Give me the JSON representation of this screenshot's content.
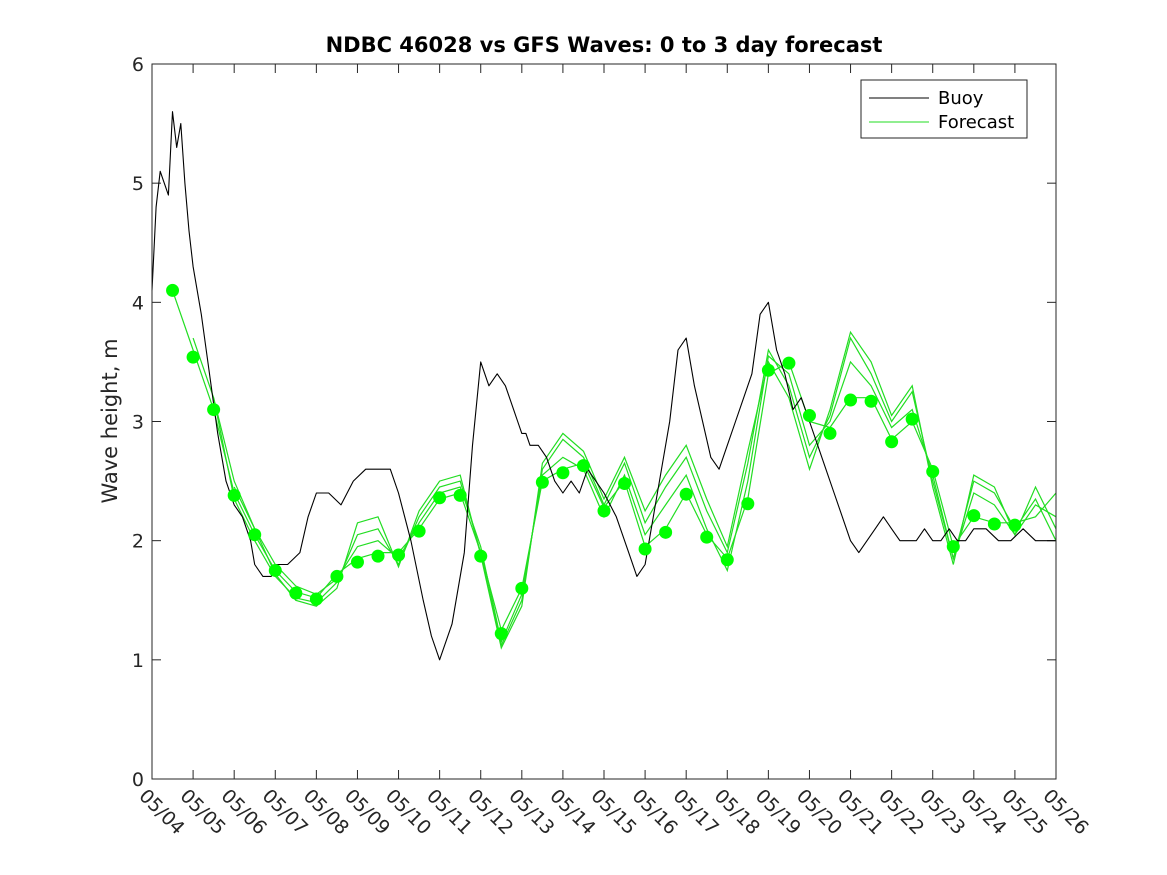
{
  "chart_data": {
    "type": "line",
    "title": "NDBC 46028 vs GFS Waves: 0 to 3 day forecast",
    "ylabel": "Wave height, m",
    "xlabel": "",
    "x_range": [
      0,
      22
    ],
    "ylim": [
      0,
      6
    ],
    "yticks": [
      0,
      1,
      2,
      3,
      4,
      5,
      6
    ],
    "xtick_labels": [
      "05/04",
      "05/05",
      "05/06",
      "05/07",
      "05/08",
      "05/09",
      "05/10",
      "05/11",
      "05/12",
      "05/13",
      "05/14",
      "05/15",
      "05/16",
      "05/17",
      "05/18",
      "05/19",
      "05/20",
      "05/21",
      "05/22",
      "05/23",
      "05/24",
      "05/25",
      "05/26"
    ],
    "legend": {
      "position": "top-right",
      "entries": [
        "Buoy",
        "Forecast"
      ]
    },
    "colors": {
      "buoy": "#000000",
      "forecast": "#00ff00",
      "forecast_line": "#22dd22"
    },
    "buoy": {
      "x": [
        0,
        0.1,
        0.2,
        0.3,
        0.4,
        0.5,
        0.6,
        0.7,
        0.8,
        0.9,
        1.0,
        1.2,
        1.4,
        1.6,
        1.8,
        2.0,
        2.2,
        2.4,
        2.5,
        2.7,
        2.9,
        3.0,
        3.3,
        3.6,
        3.8,
        4.0,
        4.3,
        4.6,
        4.9,
        5.2,
        5.5,
        5.8,
        6.0,
        6.3,
        6.6,
        6.8,
        7.0,
        7.3,
        7.6,
        7.8,
        8.0,
        8.2,
        8.4,
        8.6,
        8.8,
        8.9,
        9.0,
        9.1,
        9.2,
        9.4,
        9.6,
        9.8,
        10.0,
        10.2,
        10.4,
        10.6,
        10.8,
        11.0,
        11.3,
        11.6,
        11.8,
        12.0,
        12.2,
        12.4,
        12.6,
        12.8,
        13.0,
        13.2,
        13.4,
        13.6,
        13.8,
        14.0,
        14.2,
        14.4,
        14.6,
        14.8,
        15.0,
        15.2,
        15.4,
        15.6,
        15.8,
        16.0,
        16.2,
        16.4,
        16.6,
        16.8,
        17.0,
        17.2,
        17.4,
        17.6,
        17.8,
        18.0,
        18.2,
        18.4,
        18.6,
        18.8,
        19.0,
        19.2,
        19.4,
        19.6,
        19.8,
        20.0,
        20.3,
        20.6,
        20.9,
        21.2,
        21.5,
        21.8,
        22.0
      ],
      "y": [
        4.1,
        4.8,
        5.1,
        5.0,
        4.9,
        5.6,
        5.3,
        5.5,
        5.0,
        4.6,
        4.3,
        3.9,
        3.4,
        2.9,
        2.5,
        2.3,
        2.2,
        2.0,
        1.8,
        1.7,
        1.7,
        1.8,
        1.8,
        1.9,
        2.2,
        2.4,
        2.4,
        2.3,
        2.5,
        2.6,
        2.6,
        2.6,
        2.4,
        2.0,
        1.5,
        1.2,
        1.0,
        1.3,
        1.9,
        2.8,
        3.5,
        3.3,
        3.4,
        3.3,
        3.1,
        3.0,
        2.9,
        2.9,
        2.8,
        2.8,
        2.7,
        2.5,
        2.4,
        2.5,
        2.4,
        2.6,
        2.5,
        2.4,
        2.2,
        1.9,
        1.7,
        1.8,
        2.2,
        2.6,
        3.0,
        3.6,
        3.7,
        3.3,
        3.0,
        2.7,
        2.6,
        2.8,
        3.0,
        3.2,
        3.4,
        3.9,
        4.0,
        3.6,
        3.4,
        3.1,
        3.2,
        3.0,
        2.8,
        2.6,
        2.4,
        2.2,
        2.0,
        1.9,
        2.0,
        2.1,
        2.2,
        2.1,
        2.0,
        2.0,
        2.0,
        2.1,
        2.0,
        2.0,
        2.1,
        2.0,
        2.0,
        2.1,
        2.1,
        2.0,
        2.0,
        2.1,
        2.0,
        2.0,
        2.0
      ]
    },
    "forecast_points": {
      "x": [
        0.5,
        1.0,
        1.5,
        2.0,
        2.5,
        3.0,
        3.5,
        4.0,
        4.5,
        5.0,
        5.5,
        6.0,
        6.5,
        7.0,
        7.5,
        8.0,
        8.5,
        9.0,
        9.5,
        10.0,
        10.5,
        11.0,
        11.5,
        12.0,
        12.5,
        13.0,
        13.5,
        14.0,
        14.5,
        15.0,
        15.5,
        16.0,
        16.5,
        17.0,
        17.5,
        18.0,
        18.5,
        19.0,
        19.5,
        20.0,
        20.5,
        21.0
      ],
      "y": [
        4.1,
        3.54,
        3.1,
        2.38,
        2.05,
        1.75,
        1.56,
        1.51,
        1.7,
        1.82,
        1.87,
        1.88,
        2.08,
        2.36,
        2.38,
        1.87,
        1.22,
        1.6,
        2.49,
        2.57,
        2.63,
        2.25,
        2.48,
        1.93,
        2.07,
        2.39,
        2.03,
        1.84,
        2.31,
        3.43,
        3.49,
        3.05,
        2.9,
        3.18,
        3.17,
        2.83,
        3.02,
        2.58,
        1.95,
        2.21,
        2.14,
        2.13
      ]
    },
    "forecast_runs": [
      {
        "x": [
          0.5,
          1.0,
          1.5,
          2.0,
          2.5,
          3.0,
          3.5,
          4.0,
          4.5,
          5.0,
          5.5,
          6.0,
          6.5,
          7.0,
          7.5,
          8.0,
          8.5,
          9.0,
          9.5,
          10.0,
          10.5,
          11.0,
          11.5,
          12.0,
          12.5,
          13.0,
          13.5,
          14.0,
          14.5,
          15.0,
          15.5,
          16.0,
          16.5,
          17.0,
          17.5,
          18.0,
          18.5,
          19.0,
          19.5,
          20.0,
          20.5,
          21.0,
          21.5,
          22.0
        ],
        "y": [
          4.1,
          3.6,
          3.1,
          2.4,
          2.05,
          1.75,
          1.57,
          1.52,
          1.72,
          1.85,
          1.9,
          1.9,
          2.1,
          2.35,
          2.4,
          1.9,
          1.25,
          1.6,
          2.5,
          2.6,
          2.65,
          2.28,
          2.5,
          1.95,
          2.1,
          2.4,
          2.05,
          1.85,
          2.35,
          3.4,
          3.5,
          3.0,
          2.95,
          3.2,
          3.2,
          2.85,
          3.0,
          2.6,
          1.95,
          2.2,
          2.15,
          2.15,
          2.2,
          2.4
        ]
      },
      {
        "x": [
          1.0,
          1.5,
          2.0,
          2.5,
          3.0,
          3.5,
          4.0,
          4.5,
          5.0,
          5.5,
          6.0,
          6.5,
          7.0,
          7.5,
          8.0,
          8.5,
          9.0,
          9.5,
          10.0,
          10.5,
          11.0,
          11.5,
          12.0,
          12.5,
          13.0,
          13.5,
          14.0,
          14.5,
          15.0,
          15.5,
          16.0,
          16.5,
          17.0,
          17.5,
          18.0,
          18.5,
          19.0,
          19.5,
          20.0,
          20.5,
          21.0,
          21.5,
          22.0
        ],
        "y": [
          3.7,
          3.2,
          2.5,
          2.1,
          1.8,
          1.62,
          1.55,
          1.68,
          1.95,
          2.0,
          1.85,
          2.15,
          2.4,
          2.45,
          1.95,
          1.15,
          1.55,
          2.55,
          2.7,
          2.6,
          2.2,
          2.55,
          2.05,
          2.3,
          2.55,
          2.1,
          1.75,
          2.5,
          3.55,
          3.4,
          2.8,
          3.0,
          3.5,
          3.3,
          2.95,
          3.1,
          2.55,
          1.85,
          2.4,
          2.3,
          2.05,
          2.3,
          2.2
        ]
      },
      {
        "x": [
          1.5,
          2.0,
          2.5,
          3.0,
          3.5,
          4.0,
          4.5,
          5.0,
          5.5,
          6.0,
          6.5,
          7.0,
          7.5,
          8.0,
          8.5,
          9.0,
          9.5,
          10.0,
          10.5,
          11.0,
          11.5,
          12.0,
          12.5,
          13.0,
          13.5,
          14.0,
          14.5,
          15.0,
          15.5,
          16.0,
          16.5,
          17.0,
          17.5,
          18.0,
          18.5,
          19.0,
          19.5,
          20.0,
          20.5,
          21.0,
          21.5,
          22.0
        ],
        "y": [
          3.2,
          2.35,
          2.0,
          1.7,
          1.52,
          1.48,
          1.65,
          2.05,
          2.1,
          1.8,
          2.2,
          2.45,
          2.5,
          1.9,
          1.12,
          1.5,
          2.6,
          2.85,
          2.7,
          2.3,
          2.65,
          2.15,
          2.45,
          2.7,
          2.25,
          1.9,
          2.65,
          3.6,
          3.3,
          2.7,
          3.05,
          3.7,
          3.4,
          3.0,
          3.25,
          2.5,
          1.85,
          2.5,
          2.4,
          2.1,
          2.35,
          2.0
        ]
      },
      {
        "x": [
          2.0,
          2.5,
          3.0,
          3.5,
          4.0,
          4.5,
          5.0,
          5.5,
          6.0,
          6.5,
          7.0,
          7.5,
          8.0,
          8.5,
          9.0,
          9.5,
          10.0,
          10.5,
          11.0,
          11.5,
          12.0,
          12.5,
          13.0,
          13.5,
          14.0,
          14.5,
          15.0,
          15.5,
          16.0,
          16.5,
          17.0,
          17.5,
          18.0,
          18.5,
          19.0,
          19.5,
          20.0,
          20.5,
          21.0,
          21.5,
          22.0
        ],
        "y": [
          2.45,
          2.1,
          1.72,
          1.5,
          1.45,
          1.6,
          2.15,
          2.2,
          1.78,
          2.25,
          2.5,
          2.55,
          1.88,
          1.1,
          1.45,
          2.65,
          2.9,
          2.75,
          2.35,
          2.7,
          2.25,
          2.55,
          2.8,
          2.35,
          1.95,
          2.75,
          3.5,
          3.2,
          2.6,
          3.1,
          3.75,
          3.5,
          3.05,
          3.3,
          2.45,
          1.8,
          2.55,
          2.45,
          2.05,
          2.45,
          2.1
        ]
      }
    ]
  }
}
